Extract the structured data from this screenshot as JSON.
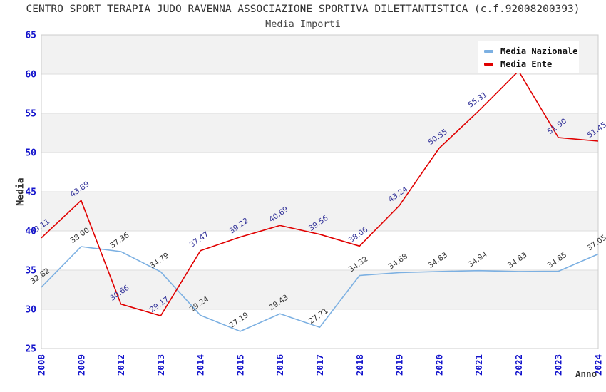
{
  "chart": {
    "title": "CENTRO SPORT TERAPIA JUDO RAVENNA ASSOCIAZIONE SPORTIVA DILETTANTISTICA (c.f.92008200393)",
    "subtitle": "Media Importi",
    "ylabel": "Media",
    "xlabel": "Anno"
  },
  "chart_data": {
    "type": "line",
    "categories": [
      "2008",
      "2009",
      "2012",
      "2013",
      "2014",
      "2015",
      "2016",
      "2017",
      "2018",
      "2019",
      "2020",
      "2021",
      "2022",
      "2023",
      "2024"
    ],
    "series": [
      {
        "name": "Media Nazionale",
        "color": "#7cb0e2",
        "label_color": "#333333",
        "values": [
          32.82,
          38.0,
          37.36,
          34.79,
          29.24,
          27.19,
          29.43,
          27.71,
          34.32,
          34.68,
          34.83,
          34.94,
          34.83,
          34.85,
          37.05
        ]
      },
      {
        "name": "Media Ente",
        "color": "#e00000",
        "label_color": "#333399",
        "values": [
          39.11,
          43.89,
          30.66,
          29.17,
          37.47,
          39.22,
          40.69,
          39.56,
          38.06,
          43.24,
          50.55,
          55.31,
          60.4,
          51.9,
          51.45
        ],
        "note": "2022 value estimated from gridlines (~60.4); its data label is hidden behind the legend box in the original"
      }
    ],
    "ylim": [
      25,
      65
    ],
    "ytick_step": 5,
    "yticks": [
      "25",
      "30",
      "35",
      "40",
      "45",
      "50",
      "55",
      "60",
      "65"
    ],
    "grid": "horizontal-bands",
    "legend_position": "top-right",
    "label_rotation_deg": -35
  },
  "colors": {
    "axis_tick": "#1414cc",
    "band": "#f2f2f2",
    "gridline": "#dedede",
    "plot_border": "#cccccc",
    "title_text": "#333333"
  }
}
